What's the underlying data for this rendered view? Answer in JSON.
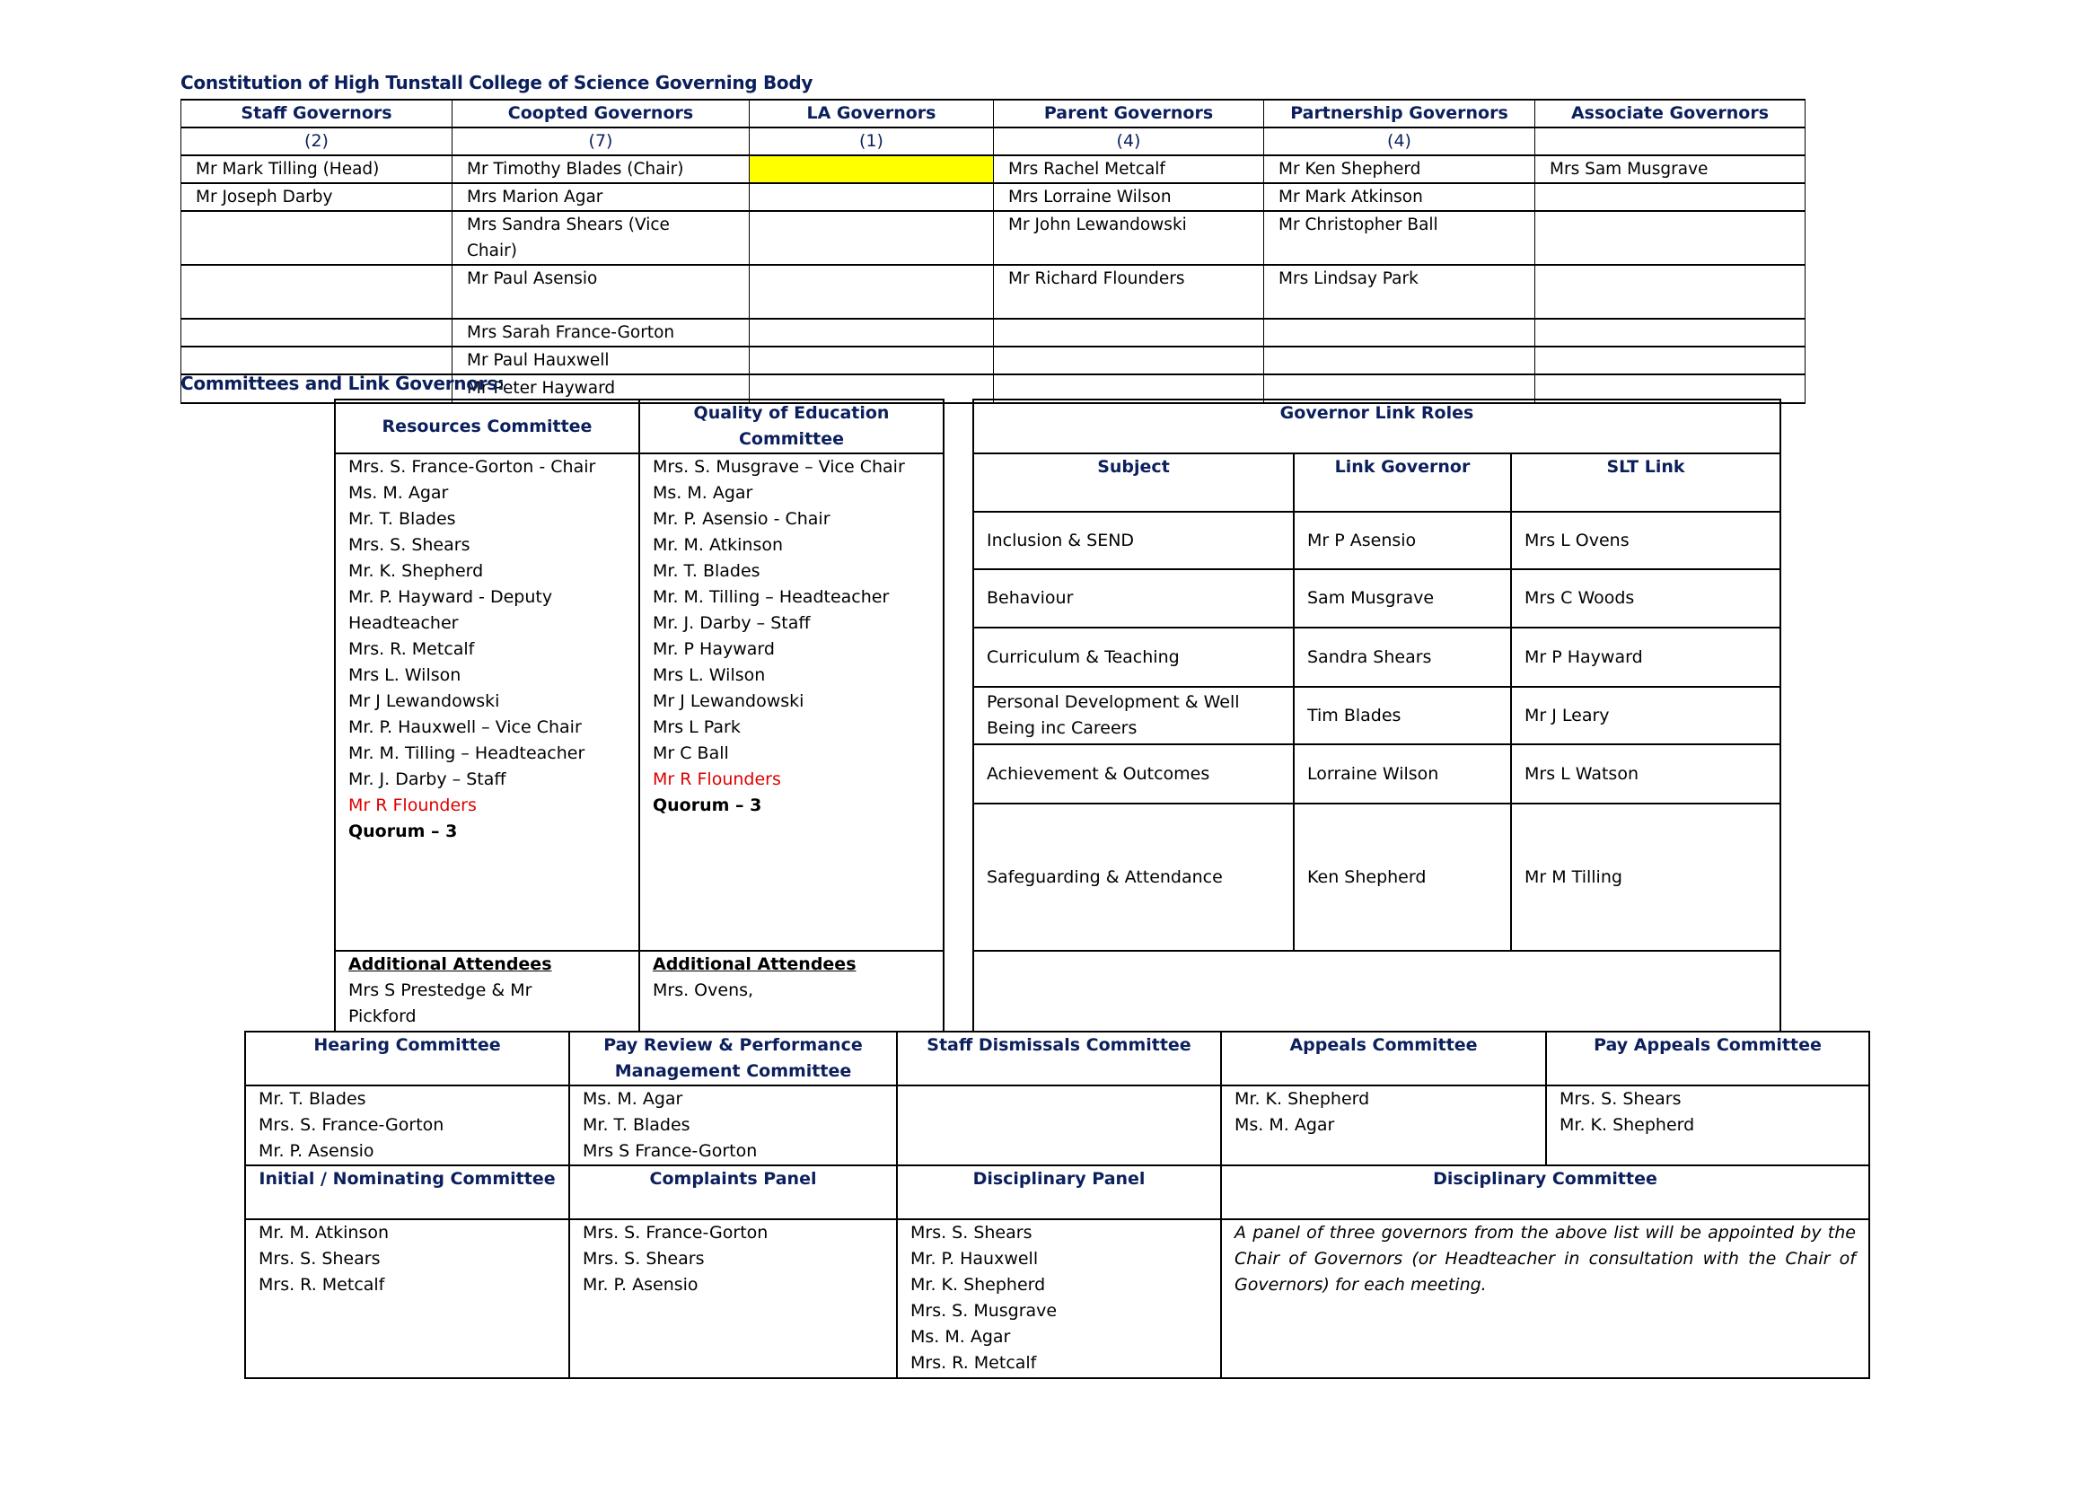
{
  "document_title": "Constitution of High Tunstall College of Science Governing Body",
  "constitution": {
    "columns": [
      {
        "header": "Staff Governors",
        "count": "(2)",
        "members": [
          "Mr Mark Tilling (Head)",
          "Mr Joseph Darby",
          "",
          "",
          "",
          "",
          ""
        ]
      },
      {
        "header": "Coopted Governors",
        "count": "(7)",
        "members": [
          "Mr Timothy Blades (Chair)",
          "Mrs Marion Agar",
          "Mrs Sandra Shears (Vice Chair)",
          "Mr Paul Asensio",
          "Mrs Sarah France-Gorton",
          "Mr Paul Hauxwell",
          "Mr Peter Hayward"
        ]
      },
      {
        "header": "LA Governors",
        "count": "(1)",
        "members": [
          "",
          "",
          "",
          "",
          "",
          "",
          ""
        ]
      },
      {
        "header": "Parent Governors",
        "count": "(4)",
        "members": [
          "Mrs Rachel Metcalf",
          "Mrs Lorraine Wilson",
          "Mr John Lewandowski",
          "Mr Richard Flounders",
          "",
          "",
          ""
        ]
      },
      {
        "header": "Partnership Governors",
        "count": "(4)",
        "members": [
          "Mr Ken Shepherd",
          "Mr Mark Atkinson",
          "Mr Christopher Ball",
          "Mrs Lindsay Park",
          "",
          "",
          ""
        ]
      },
      {
        "header": "Associate Governors",
        "count": "",
        "members": [
          "Mrs Sam Musgrave",
          "",
          "",
          "",
          "",
          "",
          ""
        ]
      }
    ],
    "highlight_color": "#ffff00"
  },
  "committees_heading": "Committees and Link Governors:",
  "resources": {
    "header": "Resources Committee",
    "members": [
      "Mrs. S. France-Gorton - Chair",
      "Ms. M. Agar",
      "Mr. T. Blades",
      "Mrs. S. Shears",
      "Mr. K. Shepherd",
      "Mr. P. Hayward - Deputy Headteacher",
      "Mrs. R. Metcalf",
      "Mrs L. Wilson",
      "Mr J Lewandowski",
      "Mr. P. Hauxwell – Vice Chair",
      "Mr. M. Tilling – Headteacher",
      "Mr. J. Darby – Staff"
    ],
    "highlight_member": "Mr R Flounders",
    "quorum": "Quorum – 3",
    "attendees_label": "Additional Attendees",
    "attendees": "Mrs S Prestedge & Mr Pickford"
  },
  "quality": {
    "header": "Quality of Education Committee",
    "members": [
      "Mrs. S. Musgrave – Vice Chair",
      "Ms. M. Agar",
      "Mr. P. Asensio - Chair",
      "Mr. M. Atkinson",
      "Mr. T. Blades",
      "Mr. M. Tilling – Headteacher",
      "Mr. J. Darby – Staff",
      "Mr. P Hayward",
      "Mrs L. Wilson",
      "Mr J Lewandowski",
      "Mrs L Park",
      "Mr C Ball"
    ],
    "highlight_member": "Mr R Flounders",
    "quorum": "Quorum – 3",
    "attendees_label": "Additional Attendees",
    "attendees": "Mrs. Ovens,"
  },
  "link_roles": {
    "header": "Governor Link Roles",
    "columns": [
      "Subject",
      "Link Governor",
      "SLT Link"
    ],
    "rows": [
      [
        "Inclusion & SEND",
        "Mr P Asensio",
        "Mrs L Ovens"
      ],
      [
        "Behaviour",
        "Sam Musgrave",
        "Mrs C Woods"
      ],
      [
        "Curriculum & Teaching",
        "Sandra Shears",
        "Mr P Hayward"
      ],
      [
        "Personal Development & Well Being inc Careers",
        "Tim Blades",
        "Mr J Leary"
      ],
      [
        "Achievement & Outcomes",
        "Lorraine Wilson",
        "Mrs L Watson"
      ],
      [
        "Safeguarding & Attendance",
        "Ken Shepherd",
        "Mr M Tilling"
      ]
    ]
  },
  "panels_top": [
    {
      "header": "Hearing Committee",
      "members": [
        "Mr. T. Blades",
        "Mrs. S. France-Gorton",
        "Mr. P. Asensio"
      ]
    },
    {
      "header": "Pay Review & Performance Management Committee",
      "members": [
        "Ms. M. Agar",
        "Mr. T. Blades",
        "Mrs S France-Gorton"
      ]
    },
    {
      "header": "Staff Dismissals Committee",
      "members": []
    },
    {
      "header": "Appeals Committee",
      "members": [
        "Mr. K. Shepherd",
        "Ms. M. Agar"
      ]
    },
    {
      "header": "Pay Appeals Committee",
      "members": [
        "Mrs. S. Shears",
        "Mr. K. Shepherd"
      ]
    }
  ],
  "panels_bottom": [
    {
      "header": "Initial / Nominating Committee",
      "members": [
        "Mr. M. Atkinson",
        "Mrs. S. Shears",
        "Mrs. R. Metcalf"
      ]
    },
    {
      "header": "Complaints Panel",
      "members": [
        "Mrs. S. France-Gorton",
        "Mrs. S. Shears",
        "Mr. P. Asensio"
      ]
    },
    {
      "header": "Disciplinary Panel",
      "members": [
        "Mrs. S. Shears",
        "Mr. P. Hauxwell",
        "Mr. K. Shepherd",
        "Mrs. S. Musgrave",
        "Ms. M. Agar",
        "Mrs. R. Metcalf"
      ]
    },
    {
      "header": "Disciplinary Committee",
      "note": "A panel of three governors from the above list will be appointed by the Chair of Governors (or Headteacher in consultation with the Chair of Governors) for each meeting."
    }
  ],
  "colors": {
    "heading": "#0b1f5c",
    "new_member": "#e00000"
  }
}
